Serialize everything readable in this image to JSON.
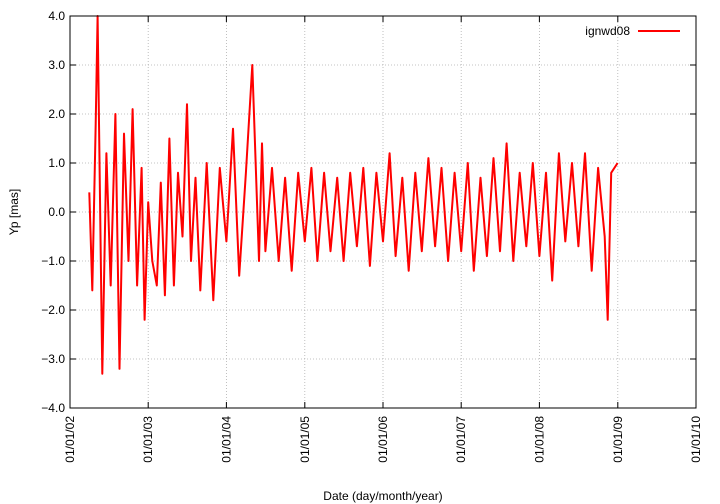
{
  "chart_data": {
    "type": "line",
    "xlabel": "Date (day/month/year)",
    "ylabel": "Yp [mas]",
    "xlim": [
      "01/01/02",
      "01/01/10"
    ],
    "ylim": [
      -4.0,
      4.0
    ],
    "x_ticks": [
      "01/01/02",
      "01/01/03",
      "01/01/04",
      "01/01/05",
      "01/01/06",
      "01/01/07",
      "01/01/08",
      "01/01/09",
      "01/01/10"
    ],
    "y_ticks": [
      "−4.0",
      "−3.0",
      "−2.0",
      "−1.0",
      "0.0",
      "1.0",
      "2.0",
      "3.0",
      "4.0"
    ],
    "grid": true,
    "legend_position": "top-right",
    "series": [
      {
        "name": "ignwd08",
        "color": "#ff0000",
        "x": [
          "2002-04-01",
          "2002-04-15",
          "2002-05-01",
          "2002-05-10",
          "2002-06-01",
          "2002-06-20",
          "2002-07-10",
          "2002-08-01",
          "2002-08-20",
          "2002-09-10",
          "2002-10-01",
          "2002-10-20",
          "2002-11-10",
          "2002-12-01",
          "2002-12-15",
          "2003-01-01",
          "2003-01-20",
          "2003-02-10",
          "2003-03-01",
          "2003-03-20",
          "2003-04-10",
          "2003-05-01",
          "2003-05-20",
          "2003-06-10",
          "2003-07-01",
          "2003-07-20",
          "2003-08-10",
          "2003-09-01",
          "2003-10-01",
          "2003-11-01",
          "2003-12-01",
          "2004-01-01",
          "2004-02-01",
          "2004-03-01",
          "2004-04-01",
          "2004-05-01",
          "2004-06-01",
          "2004-06-15",
          "2004-07-01",
          "2004-08-01",
          "2004-09-01",
          "2004-10-01",
          "2004-11-01",
          "2004-12-01",
          "2005-01-01",
          "2005-02-01",
          "2005-03-01",
          "2005-04-01",
          "2005-05-01",
          "2005-06-01",
          "2005-07-01",
          "2005-08-01",
          "2005-09-01",
          "2005-10-01",
          "2005-11-01",
          "2005-12-01",
          "2006-01-01",
          "2006-02-01",
          "2006-03-01",
          "2006-04-01",
          "2006-05-01",
          "2006-06-01",
          "2006-07-01",
          "2006-08-01",
          "2006-09-01",
          "2006-10-01",
          "2006-11-01",
          "2006-12-01",
          "2007-01-01",
          "2007-02-01",
          "2007-03-01",
          "2007-04-01",
          "2007-05-01",
          "2007-06-01",
          "2007-07-01",
          "2007-08-01",
          "2007-09-01",
          "2007-10-01",
          "2007-11-01",
          "2007-12-01",
          "2008-01-01",
          "2008-02-01",
          "2008-03-01",
          "2008-04-01",
          "2008-05-01",
          "2008-06-01",
          "2008-07-01",
          "2008-08-01",
          "2008-09-01",
          "2008-10-01",
          "2008-11-01",
          "2008-11-15",
          "2008-12-01",
          "2008-12-31"
        ],
        "y": [
          0.4,
          -1.6,
          1.8,
          4.0,
          -3.3,
          1.2,
          -1.5,
          2.0,
          -3.2,
          1.6,
          -1.0,
          2.1,
          -1.5,
          0.9,
          -2.2,
          0.2,
          -1.0,
          -1.5,
          0.6,
          -1.7,
          1.5,
          -1.5,
          0.8,
          -0.5,
          2.2,
          -1.0,
          0.7,
          -1.6,
          1.0,
          -1.8,
          0.9,
          -0.6,
          1.7,
          -1.3,
          0.8,
          3.0,
          -1.0,
          1.4,
          -0.8,
          0.9,
          -1.0,
          0.7,
          -1.2,
          0.8,
          -0.6,
          0.9,
          -1.0,
          0.8,
          -0.8,
          0.7,
          -1.0,
          0.8,
          -0.7,
          0.9,
          -1.1,
          0.8,
          -0.6,
          1.2,
          -0.9,
          0.7,
          -1.2,
          0.8,
          -0.8,
          1.1,
          -0.7,
          0.9,
          -1.0,
          0.8,
          -0.8,
          1.0,
          -1.2,
          0.7,
          -0.9,
          1.1,
          -0.8,
          1.4,
          -1.0,
          0.8,
          -0.7,
          1.0,
          -0.9,
          0.8,
          -1.4,
          1.2,
          -0.6,
          1.0,
          -0.7,
          1.2,
          -1.2,
          0.9,
          -0.5,
          -2.2,
          0.8,
          1.0
        ]
      }
    ]
  }
}
